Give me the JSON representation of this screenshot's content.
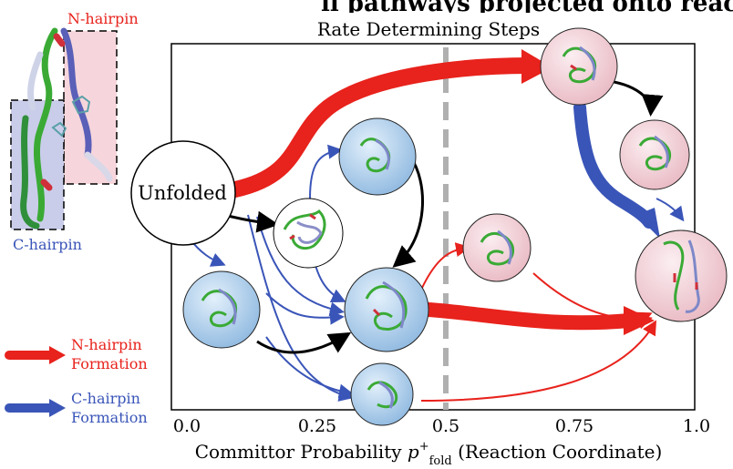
{
  "figure": {
    "top_title_fragment": "ll pathways projected onto reaction coordinate",
    "plot_title": "Rate Determining Steps",
    "x_axis_label_main": "Committor Probability ",
    "x_axis_label_symbol": "p",
    "x_axis_label_sup": "+",
    "x_axis_label_sub": "fold",
    "x_axis_label_tail": " (Reaction Coordinate)",
    "x_ticks": [
      "0.0",
      "0.25",
      "0.5",
      "0.75",
      "1.0"
    ],
    "unfolded_label": "Unfolded"
  },
  "protein_panel": {
    "n_hairpin_label": "N-hairpin",
    "c_hairpin_label": "C-hairpin"
  },
  "legend": {
    "items": [
      {
        "line1": "N-hairpin",
        "line2": "Formation",
        "color": "#e8221c"
      },
      {
        "line1": "C-hairpin",
        "line2": "Formation",
        "color": "#2f4fb0"
      }
    ]
  },
  "colors": {
    "red": "#e8221c",
    "blue": "#3a55b8",
    "pink_node": "#f6d6dc",
    "blue_node": "#bcd6ee",
    "divider": "#b0b0b0"
  }
}
